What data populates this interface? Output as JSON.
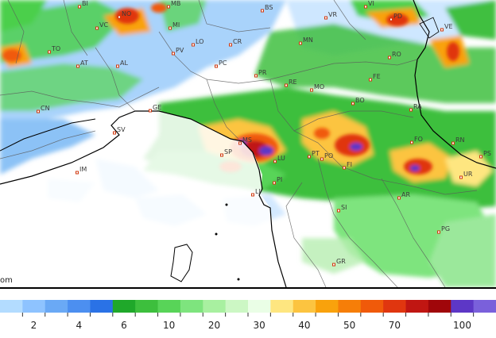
{
  "map": {
    "partial_watermark": "om",
    "cities": [
      {
        "code": "BI"
      },
      {
        "code": "NO"
      },
      {
        "code": "MB"
      },
      {
        "code": "BS"
      },
      {
        "code": "VR"
      },
      {
        "code": "VI"
      },
      {
        "code": "PD"
      },
      {
        "code": "VC"
      },
      {
        "code": "MI"
      },
      {
        "code": "VE"
      },
      {
        "code": "TO"
      },
      {
        "code": "PV"
      },
      {
        "code": "LO"
      },
      {
        "code": "CR"
      },
      {
        "code": "MN"
      },
      {
        "code": "RO"
      },
      {
        "code": "AT"
      },
      {
        "code": "AL"
      },
      {
        "code": "PC"
      },
      {
        "code": "PR"
      },
      {
        "code": "FE"
      },
      {
        "code": "RE"
      },
      {
        "code": "MO"
      },
      {
        "code": "CN"
      },
      {
        "code": "GE"
      },
      {
        "code": "BO"
      },
      {
        "code": "RA"
      },
      {
        "code": "SV"
      },
      {
        "code": "SP"
      },
      {
        "code": "MS"
      },
      {
        "code": "LU"
      },
      {
        "code": "PT"
      },
      {
        "code": "PO"
      },
      {
        "code": "FI"
      },
      {
        "code": "FO"
      },
      {
        "code": "RN"
      },
      {
        "code": "PS"
      },
      {
        "code": "IM"
      },
      {
        "code": "PI"
      },
      {
        "code": "UR"
      },
      {
        "code": "LI"
      },
      {
        "code": "AR"
      },
      {
        "code": "SI"
      },
      {
        "code": "PG"
      },
      {
        "code": "GR"
      }
    ]
  },
  "legend": {
    "colors": [
      "#b3dcff",
      "#8ec3ff",
      "#6aa9f5",
      "#4c8ff0",
      "#2a72e6",
      "#1fa82a",
      "#3dbf3d",
      "#58d458",
      "#7ee47e",
      "#a8f0a0",
      "#ccf7c4",
      "#eafee6",
      "#fee680",
      "#fcc440",
      "#f9a20c",
      "#f67e08",
      "#f05a0a",
      "#e0360f",
      "#c01612",
      "#a0060a",
      "#5d37c6",
      "#7a60db"
    ],
    "labels": [
      "2",
      "4",
      "6",
      "10",
      "20",
      "30",
      "40",
      "50",
      "70",
      "100"
    ]
  }
}
